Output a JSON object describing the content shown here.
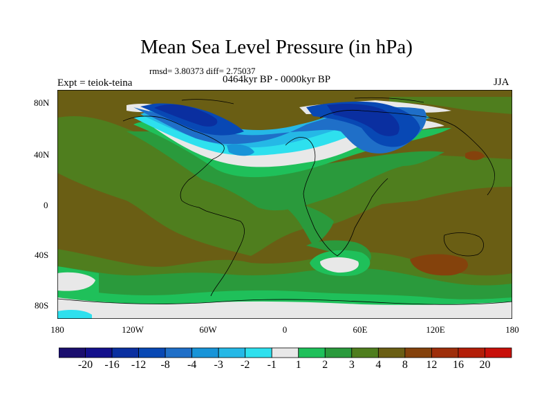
{
  "title": "Mean Sea Level Pressure (in hPa)",
  "stats": "rmsd= 3.80373  diff= 2.75037",
  "experiment": "Expt = teiok-teina",
  "period": "0464kyr BP - 0000kyr BP",
  "season": "JJA",
  "y_axis": {
    "ticks": [
      "80N",
      "40N",
      "0",
      "40S",
      "80S"
    ]
  },
  "x_axis": {
    "ticks": [
      "180",
      "120W",
      "60W",
      "0",
      "60E",
      "120E",
      "180"
    ]
  },
  "colorbar": {
    "labels": [
      "-20",
      "-16",
      "-12",
      "-8",
      "-4",
      "-3",
      "-2",
      "-1",
      "1",
      "2",
      "3",
      "4",
      "8",
      "12",
      "16",
      "20"
    ],
    "colors": [
      "#1a0e6e",
      "#13108c",
      "#0a2fa0",
      "#0848b4",
      "#1f6fc8",
      "#1894d8",
      "#25b8e6",
      "#2ee0ee",
      "#e8e8e8",
      "#1fc05a",
      "#2a9a3c",
      "#4f7e1e",
      "#6a5e14",
      "#84420c",
      "#9e2e0a",
      "#b31e08",
      "#c8100a"
    ]
  },
  "colors": {
    "background_field": "#6a5e14",
    "coastline": "#000000"
  }
}
